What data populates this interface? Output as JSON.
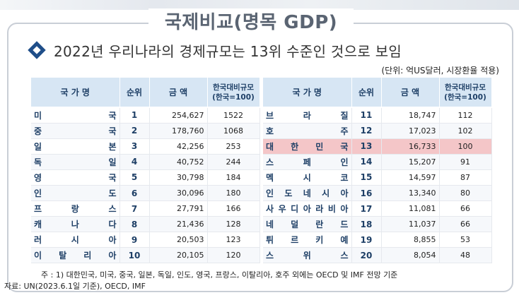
{
  "title": "국제비교(명목 GDP)",
  "subtitle": "2022년 우리나라의 경제규모는 13위 수준인 것으로 보임",
  "unit": "(단위: 억US달러, 시장환율 적용)",
  "headers": {
    "country": "국 가 명",
    "rank": "순위",
    "amount": "금 액",
    "ratio_line1": "한국대비규모",
    "ratio_line2": "(한국=100)"
  },
  "left_rows": [
    {
      "name": "미국",
      "rank": "1",
      "amount": "254,627",
      "ratio": "1522"
    },
    {
      "name": "중국",
      "rank": "2",
      "amount": "178,760",
      "ratio": "1068"
    },
    {
      "name": "일본",
      "rank": "3",
      "amount": "42,256",
      "ratio": "253"
    },
    {
      "name": "독일",
      "rank": "4",
      "amount": "40,752",
      "ratio": "244"
    },
    {
      "name": "영국",
      "rank": "5",
      "amount": "30,798",
      "ratio": "184"
    },
    {
      "name": "인도",
      "rank": "6",
      "amount": "30,096",
      "ratio": "180"
    },
    {
      "name": "프랑스",
      "rank": "7",
      "amount": "27,791",
      "ratio": "166"
    },
    {
      "name": "캐나다",
      "rank": "8",
      "amount": "21,436",
      "ratio": "128"
    },
    {
      "name": "러시아",
      "rank": "9",
      "amount": "20,503",
      "ratio": "123"
    },
    {
      "name": "이탈리아",
      "rank": "10",
      "amount": "20,105",
      "ratio": "120"
    }
  ],
  "right_rows": [
    {
      "name": "브라질",
      "rank": "11",
      "amount": "18,747",
      "ratio": "112"
    },
    {
      "name": "호주",
      "rank": "12",
      "amount": "17,023",
      "ratio": "102"
    },
    {
      "name": "대한민국",
      "rank": "13",
      "amount": "16,733",
      "ratio": "100",
      "highlight": true
    },
    {
      "name": "스페인",
      "rank": "14",
      "amount": "15,207",
      "ratio": "91"
    },
    {
      "name": "멕시코",
      "rank": "15",
      "amount": "14,597",
      "ratio": "87"
    },
    {
      "name": "인도네시아",
      "rank": "16",
      "amount": "13,340",
      "ratio": "80"
    },
    {
      "name": "사우디아라비아",
      "rank": "17",
      "amount": "11,081",
      "ratio": "66"
    },
    {
      "name": "네덜란드",
      "rank": "18",
      "amount": "11,037",
      "ratio": "66"
    },
    {
      "name": "튀르키예",
      "rank": "19",
      "amount": "8,855",
      "ratio": "53"
    },
    {
      "name": "스위스",
      "rank": "20",
      "amount": "8,054",
      "ratio": "48"
    }
  ],
  "notes": {
    "note1": "주 : 1) 대한민국, 미국, 중국, 일본, 독일, 인도, 영국, 프랑스, 이탈리아, 호주 외에는 OECD 및 IMF 전망 기준",
    "source": "자료: UN(2023.6.1일 기준), OECD, IMF"
  },
  "colors": {
    "header_bg": "#d7e6f4",
    "highlight_bg": "#f4c6c8",
    "accent": "#1f4e89"
  }
}
